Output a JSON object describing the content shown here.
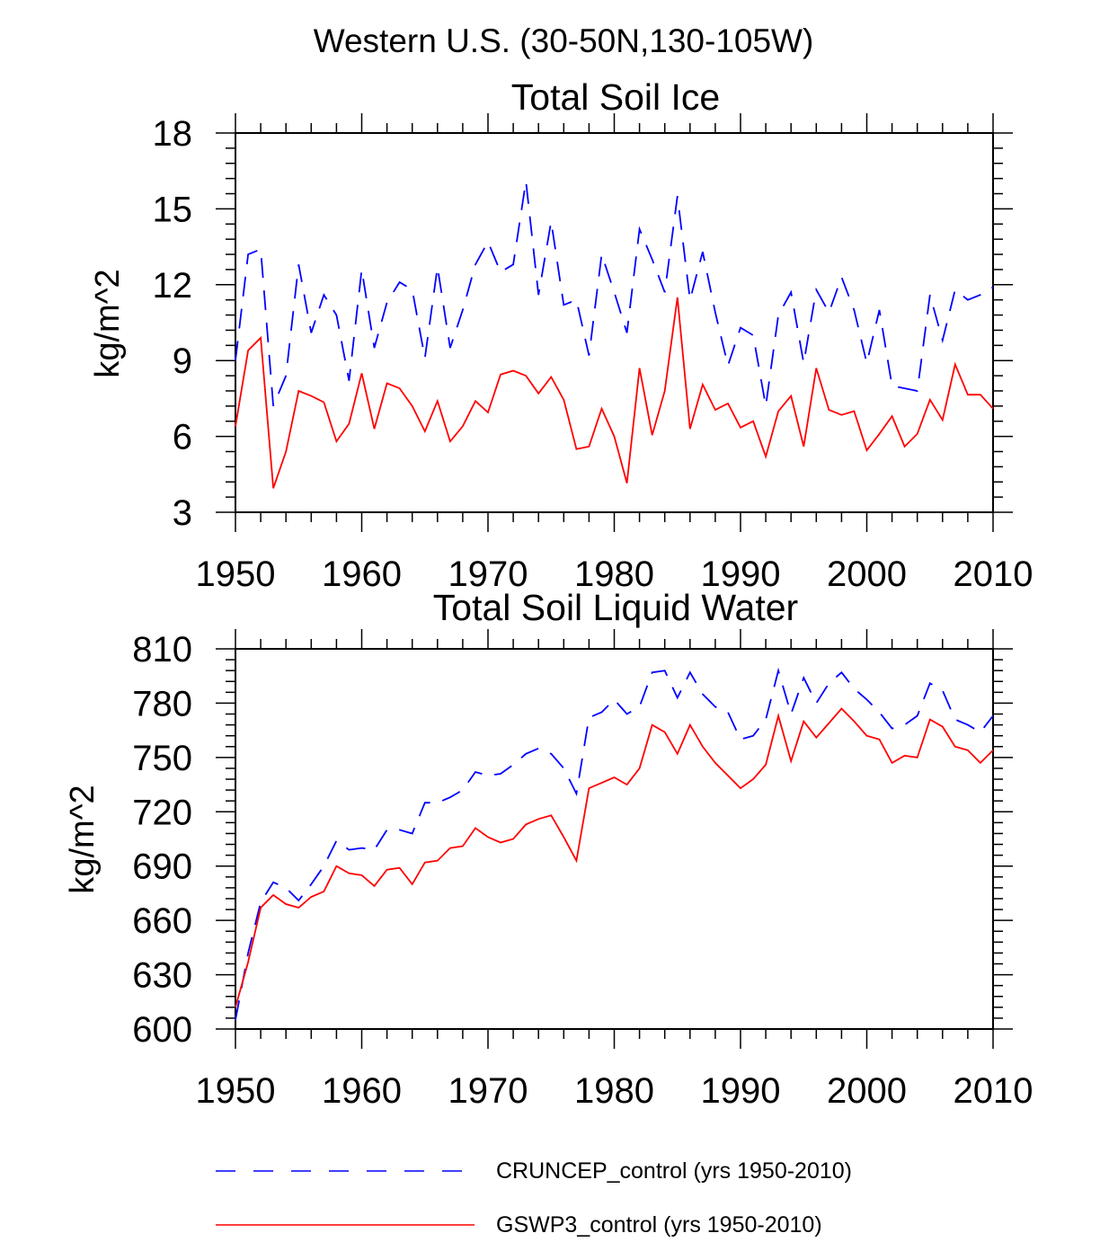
{
  "figure": {
    "title": "Western U.S. (30-50N,130-105W)",
    "legend": [
      {
        "label": "CRUNCEP_control (yrs 1950-2010)",
        "color": "#0000ff",
        "dash": "dashed"
      },
      {
        "label": "GSWP3_control (yrs 1950-2010)",
        "color": "#ff0000",
        "dash": "solid"
      }
    ]
  },
  "chart_data": [
    {
      "type": "line",
      "title": "Total Soil Ice",
      "xlabel": "",
      "ylabel": "kg/m^2",
      "xlim": [
        1950,
        2010
      ],
      "ylim": [
        3,
        18
      ],
      "xticks": [
        1950,
        1960,
        1970,
        1980,
        1990,
        2000,
        2010
      ],
      "yticks": [
        3,
        6,
        9,
        12,
        15,
        18
      ],
      "x_start": 1950,
      "series": [
        {
          "name": "CRUNCEP_control (yrs 1950-2010)",
          "color": "#0000ff",
          "dash": "dashed",
          "values": [
            9.0,
            13.2,
            13.4,
            7.2,
            8.4,
            12.8,
            10.1,
            11.6,
            10.8,
            8.2,
            12.6,
            9.5,
            11.3,
            12.1,
            11.8,
            9.1,
            12.7,
            9.5,
            11.0,
            12.8,
            13.7,
            12.5,
            12.8,
            16.1,
            11.6,
            14.5,
            11.2,
            11.4,
            9.2,
            13.2,
            11.7,
            10.1,
            14.2,
            13.0,
            11.7,
            15.5,
            11.4,
            13.3,
            10.9,
            8.8,
            10.3,
            10.0,
            7.2,
            10.8,
            11.7,
            8.9,
            11.8,
            10.9,
            12.3,
            11.0,
            8.9,
            11.0,
            8.0,
            7.9,
            7.8,
            11.6,
            9.8,
            11.8,
            11.4,
            11.6,
            11.9
          ]
        },
        {
          "name": "GSWP3_control (yrs 1950-2010)",
          "color": "#ff0000",
          "dash": "solid",
          "values": [
            6.4,
            9.4,
            9.9,
            3.95,
            5.4,
            7.8,
            7.6,
            7.35,
            5.8,
            6.5,
            8.5,
            6.3,
            8.1,
            7.9,
            7.2,
            6.2,
            7.4,
            5.8,
            6.4,
            7.4,
            6.95,
            8.45,
            8.6,
            8.4,
            7.7,
            8.35,
            7.45,
            5.5,
            5.6,
            7.1,
            6.0,
            4.15,
            8.7,
            6.05,
            7.8,
            11.5,
            6.3,
            8.05,
            7.05,
            7.3,
            6.35,
            6.6,
            5.2,
            7.0,
            7.6,
            5.6,
            8.7,
            7.05,
            6.85,
            7.0,
            5.45,
            6.1,
            6.8,
            5.6,
            6.1,
            7.45,
            6.65,
            8.85,
            7.65,
            7.65,
            7.1
          ]
        }
      ]
    },
    {
      "type": "line",
      "title": "Total Soil Liquid Water",
      "xlabel": "",
      "ylabel": "kg/m^2",
      "xlim": [
        1950,
        2010
      ],
      "ylim": [
        600,
        810
      ],
      "xticks": [
        1950,
        1960,
        1970,
        1980,
        1990,
        2000,
        2010
      ],
      "yticks": [
        600,
        630,
        660,
        690,
        720,
        750,
        780,
        810
      ],
      "x_start": 1950,
      "series": [
        {
          "name": "CRUNCEP_control (yrs 1950-2010)",
          "color": "#0000ff",
          "dash": "dashed",
          "values": [
            605,
            642,
            670,
            681,
            678,
            671,
            680,
            690,
            704,
            699,
            700,
            699,
            710,
            710,
            708,
            725,
            725,
            728,
            732,
            742,
            740,
            741,
            746,
            752,
            755,
            752,
            744,
            730,
            772,
            775,
            782,
            774,
            778,
            797,
            798,
            783,
            797,
            785,
            778,
            775,
            760,
            762,
            771,
            798,
            774,
            794,
            780,
            791,
            797,
            788,
            782,
            775,
            766,
            768,
            773,
            791,
            787,
            771,
            768,
            764,
            773
          ]
        },
        {
          "name": "GSWP3_control (yrs 1950-2010)",
          "color": "#ff0000",
          "dash": "solid",
          "values": [
            612,
            637,
            667,
            674,
            669,
            667,
            673,
            676,
            690,
            686,
            685,
            679,
            688,
            689,
            680,
            692,
            693,
            700,
            701,
            711,
            706,
            703,
            705,
            713,
            716,
            718,
            706,
            693,
            733,
            736,
            739,
            735,
            744,
            768,
            764,
            752,
            768,
            756,
            747,
            740,
            733,
            738,
            746,
            773,
            748,
            770,
            761,
            769,
            777,
            770,
            762,
            760,
            747,
            751,
            750,
            771,
            767,
            756,
            754,
            747,
            754
          ]
        }
      ]
    }
  ]
}
